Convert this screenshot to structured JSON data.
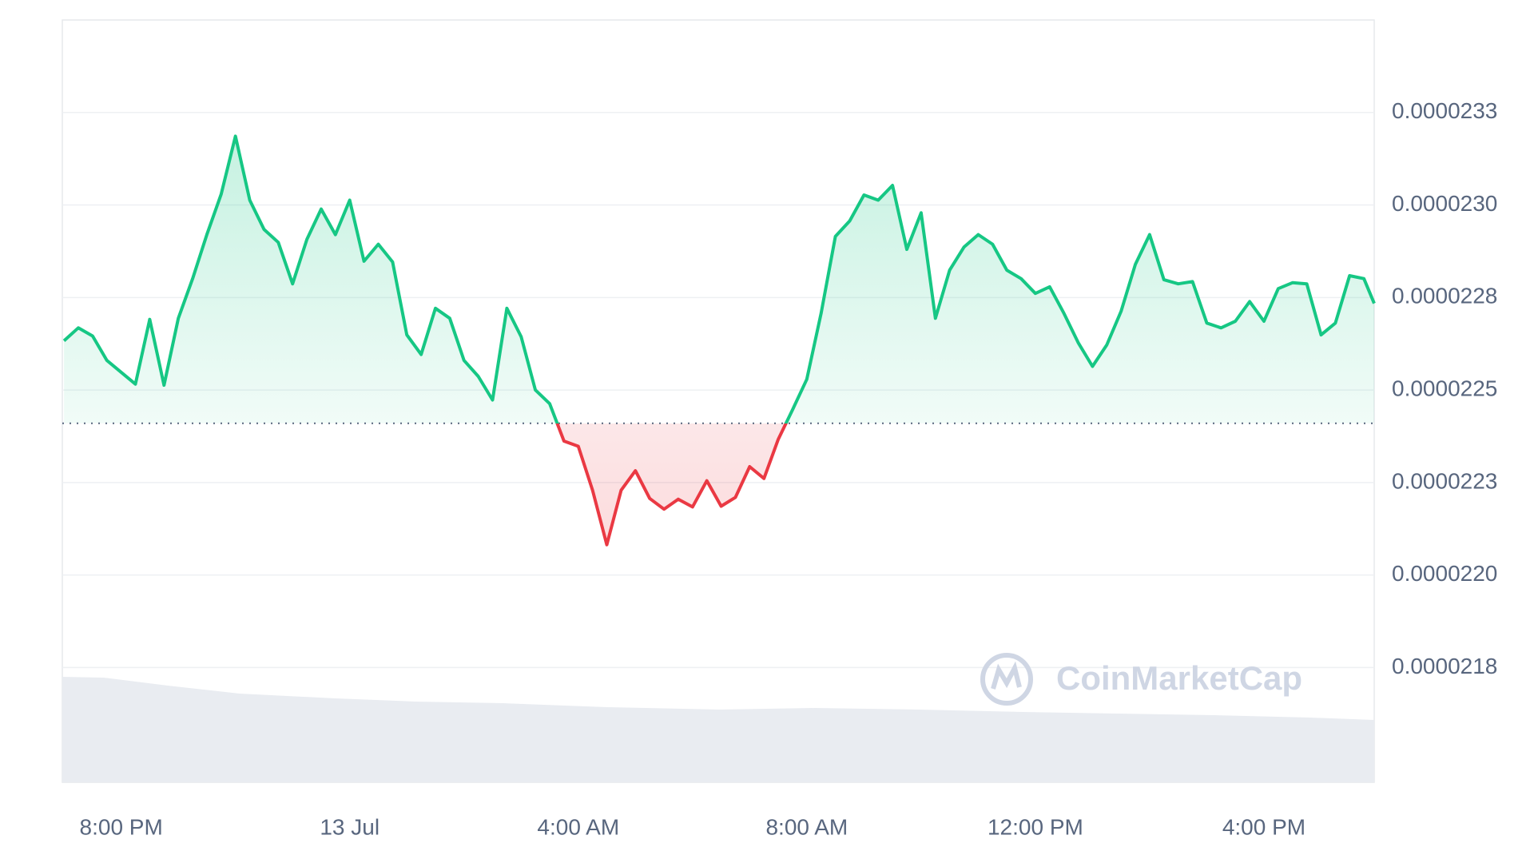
{
  "chart_data": {
    "type": "line",
    "watermark": "CoinMarketCap",
    "x": [
      19.0,
      19.25,
      19.5,
      19.75,
      20.0,
      20.25,
      20.5,
      20.75,
      21.0,
      21.25,
      21.5,
      21.75,
      22.0,
      22.25,
      22.5,
      22.75,
      23.0,
      23.25,
      23.5,
      23.75,
      24.0,
      24.25,
      24.5,
      24.75,
      25.0,
      25.25,
      25.5,
      25.75,
      26.0,
      26.25,
      26.5,
      26.75,
      27.0,
      27.25,
      27.5,
      27.75,
      28.0,
      28.25,
      28.5,
      28.75,
      29.0,
      29.25,
      29.5,
      29.75,
      30.0,
      30.25,
      30.5,
      30.75,
      31.0,
      31.25,
      31.5,
      31.75,
      32.0,
      32.25,
      32.5,
      32.75,
      33.0,
      33.25,
      33.5,
      33.75,
      34.0,
      34.25,
      34.5,
      34.75,
      35.0,
      35.25,
      35.5,
      35.75,
      36.0,
      36.25,
      36.5,
      36.75,
      37.0,
      37.25,
      37.5,
      37.75,
      38.0,
      38.25,
      38.5,
      38.75,
      39.0,
      39.25,
      39.5,
      39.75,
      40.0,
      40.25,
      40.5,
      40.75,
      41.0,
      41.25,
      41.5,
      41.75,
      41.93
    ],
    "values": [
      2.2633e-05,
      2.2668e-05,
      2.2646e-05,
      2.258e-05,
      2.2548e-05,
      2.2516e-05,
      2.2691e-05,
      2.2513e-05,
      2.2694e-05,
      2.2801e-05,
      2.292e-05,
      2.3029e-05,
      2.3186e-05,
      2.3013e-05,
      2.2934e-05,
      2.2899e-05,
      2.2787e-05,
      2.2907e-05,
      2.2989e-05,
      2.292e-05,
      2.3013e-05,
      2.2848e-05,
      2.2894e-05,
      2.2846e-05,
      2.2649e-05,
      2.2596e-05,
      2.2721e-05,
      2.2694e-05,
      2.258e-05,
      2.2537e-05,
      2.2473e-05,
      2.2721e-05,
      2.2644e-05,
      2.25e-05,
      2.2463e-05,
      2.2362e-05,
      2.2348e-05,
      2.2229e-05,
      2.2082e-05,
      2.2229e-05,
      2.2282e-05,
      2.2207e-05,
      2.2178e-05,
      2.2205e-05,
      2.2184e-05,
      2.2255e-05,
      2.2186e-05,
      2.221e-05,
      2.2293e-05,
      2.2261e-05,
      2.2367e-05,
      2.2447e-05,
      2.2529e-05,
      2.2707e-05,
      2.2915e-05,
      2.2957e-05,
      2.3027e-05,
      2.3013e-05,
      2.3053e-05,
      2.288e-05,
      2.2979e-05,
      2.2694e-05,
      2.2824e-05,
      2.2886e-05,
      2.292e-05,
      2.2894e-05,
      2.2824e-05,
      2.2801e-05,
      2.2761e-05,
      2.2779e-05,
      2.2707e-05,
      2.2628e-05,
      2.2564e-05,
      2.2622e-05,
      2.2713e-05,
      2.284e-05,
      2.292e-05,
      2.2798e-05,
      2.2787e-05,
      2.2793e-05,
      2.2681e-05,
      2.2668e-05,
      2.2686e-05,
      2.2739e-05,
      2.2686e-05,
      2.2774e-05,
      2.279e-05,
      2.2787e-05,
      2.2649e-05,
      2.2681e-05,
      2.2809e-05,
      2.2801e-05,
      2.2734e-05
    ],
    "reference": 2.241e-05,
    "color_above": "#16c784",
    "color_below": "#ea3943",
    "xlim": [
      18.97,
      41.93
    ],
    "xticks": [
      {
        "value": 20,
        "label": "8:00 PM"
      },
      {
        "value": 24,
        "label": "13 Jul"
      },
      {
        "value": 28,
        "label": "4:00 AM"
      },
      {
        "value": 32,
        "label": "8:00 AM"
      },
      {
        "value": 36,
        "label": "12:00 PM"
      },
      {
        "value": 40,
        "label": "4:00 PM"
      }
    ],
    "ylim": [
      2.144e-05,
      2.35e-05
    ],
    "yticks": [
      {
        "value": 2.325e-05,
        "label": "0.0000233"
      },
      {
        "value": 2.3e-05,
        "label": "0.0000230"
      },
      {
        "value": 2.275e-05,
        "label": "0.0000228"
      },
      {
        "value": 2.25e-05,
        "label": "0.0000225"
      },
      {
        "value": 2.225e-05,
        "label": "0.0000223"
      },
      {
        "value": 2.2e-05,
        "label": "0.0000220"
      },
      {
        "value": 2.175e-05,
        "label": "0.0000218"
      }
    ],
    "grid": true
  }
}
